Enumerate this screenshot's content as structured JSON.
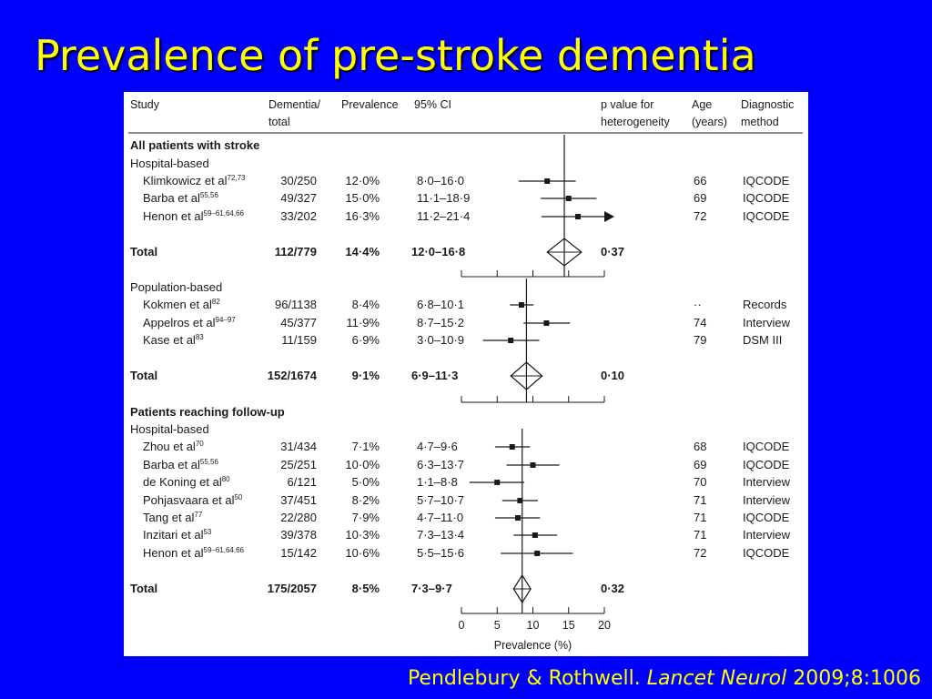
{
  "slide": {
    "title": "Prevalence of pre-stroke dementia",
    "citation_authors": "Pendlebury & Rothwell. ",
    "citation_journal": "Lancet Neurol",
    "citation_ref": " 2009;8:1006"
  },
  "colors": {
    "background": "#0000ff",
    "title": "#ffff00",
    "figure_bg": "#ffffff",
    "ink": "#1a1a1a"
  },
  "headers": {
    "study": "Study",
    "dementia_total_1": "Dementia/",
    "dementia_total_2": "total",
    "prevalence": "Prevalence",
    "ci": "95% CI",
    "p_1": "p value for",
    "p_2": "heterogeneity",
    "age_1": "Age",
    "age_2": "(years)",
    "diag_1": "Diagnostic",
    "diag_2": "method"
  },
  "chart_data": {
    "type": "forest",
    "xlabel": "Prevalence (%)",
    "xlim": [
      0,
      20
    ],
    "xticks": [
      "0",
      "5",
      "10",
      "15",
      "20"
    ],
    "groups": [
      {
        "heading": "All patients with stroke",
        "subheading": "Hospital-based",
        "studies": [
          {
            "name": "Klimkowicz et al",
            "ref": "72,73",
            "n": "30/250",
            "prev_label": "12·0%",
            "ci_label": "8·0–16·0",
            "prev": 12.0,
            "lo": 8.0,
            "hi": 16.0,
            "age": "66",
            "method": "IQCODE"
          },
          {
            "name": "Barba et al",
            "ref": "55,56",
            "n": "49/327",
            "prev_label": "15·0%",
            "ci_label": "11·1–18·9",
            "prev": 15.0,
            "lo": 11.1,
            "hi": 18.9,
            "age": "69",
            "method": "IQCODE"
          },
          {
            "name": "Henon et al",
            "ref": "59–61,64,66",
            "n": "33/202",
            "prev_label": "16·3%",
            "ci_label": "11·2–21·4",
            "prev": 16.3,
            "lo": 11.2,
            "hi": 21.4,
            "age": "72",
            "method": "IQCODE"
          }
        ],
        "total": {
          "label": "Total",
          "n": "112/779",
          "prev_label": "14·4%",
          "ci_label": "12·0–16·8",
          "prev": 14.4,
          "lo": 12.0,
          "hi": 16.8,
          "p": "0·37"
        }
      },
      {
        "heading": "",
        "subheading": "Population-based",
        "studies": [
          {
            "name": "Kokmen et al",
            "ref": "82",
            "n": "96/1138",
            "prev_label": "8·4%",
            "ci_label": "6·8–10·1",
            "prev": 8.4,
            "lo": 6.8,
            "hi": 10.1,
            "age": "··",
            "method": "Records"
          },
          {
            "name": "Appelros et al",
            "ref": "94–97",
            "n": "45/377",
            "prev_label": "11·9%",
            "ci_label": "8·7–15·2",
            "prev": 11.9,
            "lo": 8.7,
            "hi": 15.2,
            "age": "74",
            "method": "Interview"
          },
          {
            "name": "Kase et al",
            "ref": "83",
            "n": "11/159",
            "prev_label": "6·9%",
            "ci_label": "3·0–10·9",
            "prev": 6.9,
            "lo": 3.0,
            "hi": 10.9,
            "age": "79",
            "method": "DSM III"
          }
        ],
        "total": {
          "label": "Total",
          "n": "152/1674",
          "prev_label": "9·1%",
          "ci_label": "6·9–11·3",
          "prev": 9.1,
          "lo": 6.9,
          "hi": 11.3,
          "p": "0·10"
        }
      },
      {
        "heading": "Patients reaching follow-up",
        "subheading": "Hospital-based",
        "studies": [
          {
            "name": "Zhou et al",
            "ref": "70",
            "n": "31/434",
            "prev_label": "7·1%",
            "ci_label": "4·7–9·6",
            "prev": 7.1,
            "lo": 4.7,
            "hi": 9.6,
            "age": "68",
            "method": "IQCODE"
          },
          {
            "name": "Barba et al",
            "ref": "55,56",
            "n": "25/251",
            "prev_label": "10·0%",
            "ci_label": "6·3–13·7",
            "prev": 10.0,
            "lo": 6.3,
            "hi": 13.7,
            "age": "69",
            "method": "IQCODE"
          },
          {
            "name": "de Koning et al",
            "ref": "80",
            "n": "6/121",
            "prev_label": "5·0%",
            "ci_label": "1·1–8·8",
            "prev": 5.0,
            "lo": 1.1,
            "hi": 8.8,
            "age": "70",
            "method": "Interview"
          },
          {
            "name": "Pohjasvaara et al",
            "ref": "50",
            "n": "37/451",
            "prev_label": "8·2%",
            "ci_label": "5·7–10·7",
            "prev": 8.2,
            "lo": 5.7,
            "hi": 10.7,
            "age": "71",
            "method": "Interview"
          },
          {
            "name": "Tang et al",
            "ref": "77",
            "n": "22/280",
            "prev_label": "7·9%",
            "ci_label": "4·7–11·0",
            "prev": 7.9,
            "lo": 4.7,
            "hi": 11.0,
            "age": "71",
            "method": "IQCODE"
          },
          {
            "name": "Inzitari et al",
            "ref": "53",
            "n": "39/378",
            "prev_label": "10·3%",
            "ci_label": "7·3–13·4",
            "prev": 10.3,
            "lo": 7.3,
            "hi": 13.4,
            "age": "71",
            "method": "Interview"
          },
          {
            "name": "Henon et al",
            "ref": "59–61,64,66",
            "n": "15/142",
            "prev_label": "10·6%",
            "ci_label": "5·5–15·6",
            "prev": 10.6,
            "lo": 5.5,
            "hi": 15.6,
            "age": "72",
            "method": "IQCODE"
          }
        ],
        "total": {
          "label": "Total",
          "n": "175/2057",
          "prev_label": "8·5%",
          "ci_label": "7·3–9·7",
          "prev": 8.5,
          "lo": 7.3,
          "hi": 9.7,
          "p": "0·32"
        }
      }
    ]
  }
}
